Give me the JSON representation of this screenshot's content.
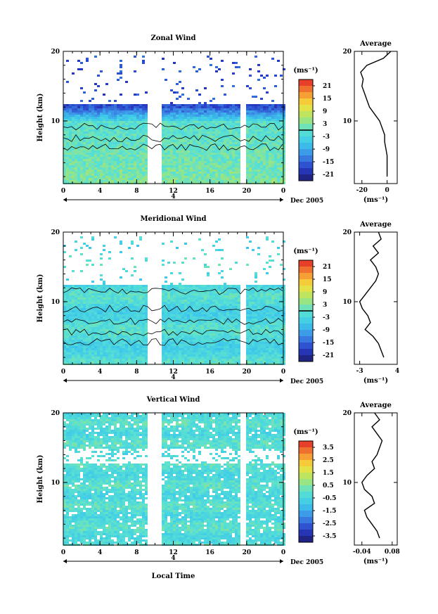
{
  "figure": {
    "xlabel": "Local Time",
    "date_label": "Dec 2005",
    "day_marker": "4"
  },
  "chart_data": [
    {
      "type": "heatmap",
      "title": "Zonal Wind",
      "ylabel": "Height (km)",
      "unit_label": "(ms⁻¹)",
      "xticks": [
        "0",
        "4",
        "8",
        "12",
        "16",
        "20",
        "0"
      ],
      "yticks": [
        "10",
        "20"
      ],
      "xlim": [
        0,
        24
      ],
      "ylim": [
        1,
        20
      ],
      "colorbar_ticks": [
        "21",
        "15",
        "9",
        "3",
        "-3",
        "-9",
        "-15",
        "-21"
      ],
      "colorbar_range": [
        -24,
        24
      ],
      "data_gap_hours": [
        [
          9,
          10.5
        ],
        [
          19.3,
          19.9
        ]
      ],
      "profile": {
        "title": "Average",
        "xlabel": "(ms⁻¹)",
        "xticks": [
          "-20",
          "0"
        ],
        "xlim": [
          -26,
          8
        ],
        "heights": [
          2,
          3,
          4,
          5,
          6,
          7,
          8,
          9,
          10,
          11,
          12,
          13,
          14,
          15,
          16,
          17,
          18,
          19,
          20
        ],
        "values": [
          0,
          0,
          0,
          0,
          -1,
          -2,
          -2,
          -4,
          -6,
          -10,
          -14,
          -16,
          -18,
          -20,
          -19,
          -21,
          -16,
          -3,
          3
        ]
      }
    },
    {
      "type": "heatmap",
      "title": "Meridional Wind",
      "ylabel": "Height (km)",
      "unit_label": "(ms⁻¹)",
      "xticks": [
        "0",
        "4",
        "8",
        "12",
        "16",
        "20",
        "0"
      ],
      "yticks": [
        "10",
        "20"
      ],
      "xlim": [
        0,
        24
      ],
      "ylim": [
        1,
        20
      ],
      "colorbar_ticks": [
        "21",
        "15",
        "9",
        "3",
        "-3",
        "-9",
        "-15",
        "-21"
      ],
      "colorbar_range": [
        -24,
        24
      ],
      "data_gap_hours": [
        [
          9,
          10.5
        ],
        [
          19.3,
          19.9
        ]
      ],
      "profile": {
        "title": "Average",
        "xlabel": "(ms⁻¹)",
        "xticks": [
          "-3",
          "4"
        ],
        "xlim": [
          -4,
          4
        ],
        "heights": [
          2,
          3,
          4,
          5,
          6,
          7,
          8,
          9,
          10,
          11,
          12,
          13,
          14,
          15,
          16,
          17,
          18,
          19,
          20
        ],
        "values": [
          1.5,
          1,
          0.5,
          -0.5,
          -2,
          -1,
          -1.5,
          -2.5,
          -3,
          -2,
          -1,
          0,
          0.5,
          0,
          -1,
          0.5,
          -0.5,
          1,
          0.5
        ]
      }
    },
    {
      "type": "heatmap",
      "title": "Vertical Wind",
      "ylabel": "Height (km)",
      "unit_label": "(ms⁻¹)",
      "xticks": [
        "0",
        "4",
        "8",
        "12",
        "16",
        "20",
        "0"
      ],
      "yticks": [
        "10",
        "20"
      ],
      "xlim": [
        0,
        24
      ],
      "ylim": [
        1,
        20
      ],
      "colorbar_ticks": [
        "3.5",
        "2.5",
        "1.5",
        "0.5",
        "-0.5",
        "-1.5",
        "-2.5",
        "-3.5"
      ],
      "colorbar_range": [
        -4,
        4
      ],
      "data_gap_hours": [
        [
          9,
          10.5
        ],
        [
          19.3,
          19.9
        ]
      ],
      "profile": {
        "title": "Average",
        "xlabel": "(ms⁻¹)",
        "xticks": [
          "-0.04",
          "0.08"
        ],
        "xlim": [
          -0.07,
          0.1
        ],
        "heights": [
          2,
          3,
          4,
          5,
          6,
          7,
          8,
          9,
          10,
          11,
          12,
          13,
          14,
          15,
          16,
          17,
          18,
          19,
          20
        ],
        "values": [
          0.03,
          0.02,
          0.0,
          -0.02,
          -0.03,
          0.01,
          0.0,
          -0.03,
          -0.04,
          -0.02,
          0.01,
          0.0,
          0.02,
          0.03,
          0.04,
          0.02,
          0.0,
          0.03,
          0.01
        ]
      }
    }
  ]
}
